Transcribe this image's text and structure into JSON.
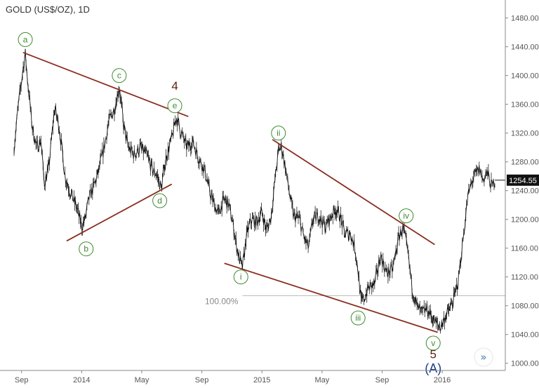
{
  "chart_data": {
    "type": "line",
    "title": "GOLD (US$/OZ), 1D",
    "yticks": [
      1000,
      1040,
      1080,
      1120,
      1160,
      1200,
      1240,
      1280,
      1320,
      1360,
      1400,
      1440,
      1480
    ],
    "ytick_labels": [
      "1000.00",
      "1040.00",
      "1080.00",
      "1120.00",
      "1160.00",
      "1200.00",
      "1240.00",
      "1280.00",
      "1320.00",
      "1360.00",
      "1400.00",
      "1440.00",
      "1480.00"
    ],
    "xticks": [
      {
        "label": "Sep",
        "t": 0.5
      },
      {
        "label": "2014",
        "t": 4.5
      },
      {
        "label": "May",
        "t": 8.5
      },
      {
        "label": "Sep",
        "t": 12.5
      },
      {
        "label": "2015",
        "t": 16.5
      },
      {
        "label": "May",
        "t": 20.5
      },
      {
        "label": "Sep",
        "t": 24.5
      },
      {
        "label": "2016",
        "t": 28.5
      }
    ],
    "xlim": [
      0,
      32
    ],
    "ylim": [
      990,
      1505
    ],
    "last_price": 1254.55,
    "last_price_label": "1254.55",
    "price": [
      [
        0.0,
        1300
      ],
      [
        0.3,
        1360
      ],
      [
        0.6,
        1410
      ],
      [
        0.75,
        1430
      ],
      [
        0.9,
        1395
      ],
      [
        1.2,
        1330
      ],
      [
        1.5,
        1300
      ],
      [
        1.8,
        1310
      ],
      [
        2.0,
        1250
      ],
      [
        2.3,
        1270
      ],
      [
        2.7,
        1355
      ],
      [
        3.0,
        1330
      ],
      [
        3.4,
        1260
      ],
      [
        3.8,
        1235
      ],
      [
        4.2,
        1215
      ],
      [
        4.5,
        1190
      ],
      [
        4.7,
        1198
      ],
      [
        5.0,
        1230
      ],
      [
        5.3,
        1245
      ],
      [
        5.6,
        1265
      ],
      [
        6.0,
        1300
      ],
      [
        6.3,
        1335
      ],
      [
        6.7,
        1355
      ],
      [
        7.0,
        1385
      ],
      [
        7.3,
        1330
      ],
      [
        7.6,
        1300
      ],
      [
        8.0,
        1290
      ],
      [
        8.4,
        1300
      ],
      [
        8.8,
        1290
      ],
      [
        9.2,
        1270
      ],
      [
        9.5,
        1262
      ],
      [
        9.8,
        1243
      ],
      [
        10.1,
        1285
      ],
      [
        10.5,
        1312
      ],
      [
        10.8,
        1343
      ],
      [
        11.1,
        1322
      ],
      [
        11.5,
        1300
      ],
      [
        11.9,
        1308
      ],
      [
        12.3,
        1285
      ],
      [
        12.7,
        1268
      ],
      [
        13.0,
        1240
      ],
      [
        13.3,
        1222
      ],
      [
        13.6,
        1208
      ],
      [
        14.0,
        1228
      ],
      [
        14.3,
        1220
      ],
      [
        14.6,
        1190
      ],
      [
        14.8,
        1165
      ],
      [
        15.0,
        1145
      ],
      [
        15.2,
        1132
      ],
      [
        15.5,
        1180
      ],
      [
        15.8,
        1200
      ],
      [
        16.1,
        1195
      ],
      [
        16.5,
        1210
      ],
      [
        16.8,
        1185
      ],
      [
        17.1,
        1202
      ],
      [
        17.4,
        1260
      ],
      [
        17.6,
        1295
      ],
      [
        17.8,
        1302
      ],
      [
        18.0,
        1280
      ],
      [
        18.3,
        1240
      ],
      [
        18.6,
        1205
      ],
      [
        19.0,
        1200
      ],
      [
        19.3,
        1175
      ],
      [
        19.6,
        1160
      ],
      [
        19.9,
        1200
      ],
      [
        20.3,
        1205
      ],
      [
        20.7,
        1190
      ],
      [
        21.0,
        1200
      ],
      [
        21.4,
        1215
      ],
      [
        21.7,
        1205
      ],
      [
        22.0,
        1180
      ],
      [
        22.4,
        1180
      ],
      [
        22.7,
        1160
      ],
      [
        22.9,
        1130
      ],
      [
        23.1,
        1085
      ],
      [
        23.3,
        1090
      ],
      [
        23.6,
        1105
      ],
      [
        24.0,
        1110
      ],
      [
        24.4,
        1150
      ],
      [
        24.8,
        1125
      ],
      [
        25.2,
        1130
      ],
      [
        25.6,
        1175
      ],
      [
        25.9,
        1188
      ],
      [
        26.2,
        1155
      ],
      [
        26.5,
        1105
      ],
      [
        26.8,
        1080
      ],
      [
        27.1,
        1070
      ],
      [
        27.5,
        1075
      ],
      [
        27.8,
        1065
      ],
      [
        28.1,
        1055
      ],
      [
        28.4,
        1050
      ],
      [
        28.7,
        1065
      ],
      [
        29.0,
        1075
      ],
      [
        29.3,
        1090
      ],
      [
        29.6,
        1120
      ],
      [
        29.9,
        1175
      ],
      [
        30.2,
        1230
      ],
      [
        30.5,
        1255
      ],
      [
        30.8,
        1265
      ],
      [
        31.0,
        1270
      ],
      [
        31.2,
        1255
      ],
      [
        31.5,
        1265
      ],
      [
        31.8,
        1245
      ],
      [
        32.0,
        1254.55
      ]
    ],
    "trendlines": [
      {
        "x1": 0.6,
        "y1": 1432,
        "x2": 11.6,
        "y2": 1343
      },
      {
        "x1": 3.5,
        "y1": 1170,
        "x2": 10.5,
        "y2": 1249
      },
      {
        "x1": 17.2,
        "y1": 1311,
        "x2": 28.0,
        "y2": 1165
      },
      {
        "x1": 14.0,
        "y1": 1139,
        "x2": 28.2,
        "y2": 1043
      }
    ],
    "horizontal_line": {
      "y": 1094,
      "label": "100.00%"
    },
    "wave_labels": [
      {
        "text": "a",
        "t": 0.75,
        "v": 1450
      },
      {
        "text": "b",
        "t": 4.8,
        "v": 1159
      },
      {
        "text": "c",
        "t": 7.0,
        "v": 1400
      },
      {
        "text": "d",
        "t": 9.7,
        "v": 1226
      },
      {
        "text": "e",
        "t": 10.7,
        "v": 1358
      },
      {
        "text": "i",
        "t": 15.1,
        "v": 1120
      },
      {
        "text": "ii",
        "t": 17.6,
        "v": 1320
      },
      {
        "text": "iii",
        "t": 22.9,
        "v": 1063
      },
      {
        "text": "iv",
        "t": 26.1,
        "v": 1205
      },
      {
        "text": "v",
        "t": 27.9,
        "v": 1028
      }
    ],
    "major_labels": [
      {
        "text": "4",
        "t": 10.7,
        "v": 1380,
        "style": "major"
      },
      {
        "text": "5",
        "t": 27.9,
        "v": 1007,
        "style": "major"
      },
      {
        "text": "(A)",
        "t": 27.9,
        "v": 987,
        "style": "A"
      }
    ]
  },
  "ui": {
    "forward_icon": "double-chevron-right-icon"
  }
}
